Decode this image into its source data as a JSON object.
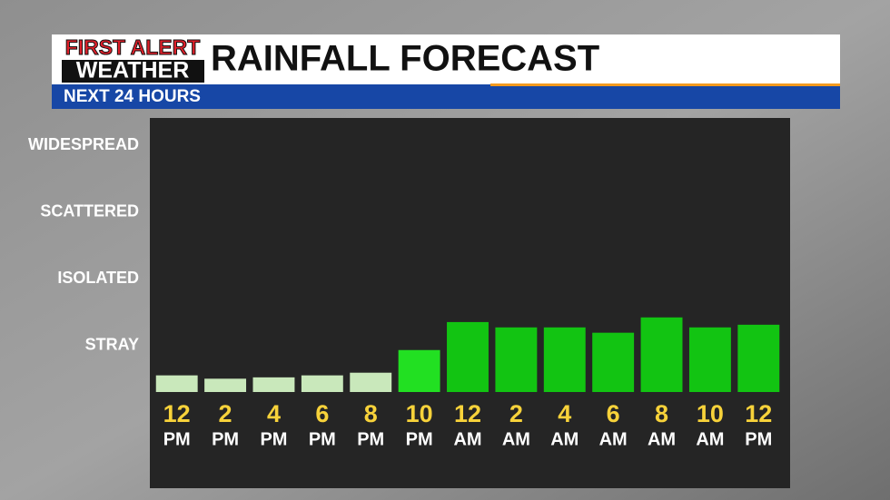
{
  "header": {
    "logo": [
      "FIRST ALERT",
      "WEATHER"
    ],
    "title": "RAINFALL FORECAST",
    "subtitle": "NEXT 24 HOURS"
  },
  "chart_data": {
    "type": "bar",
    "categories": [
      [
        "12",
        "PM"
      ],
      [
        "2",
        "PM"
      ],
      [
        "4",
        "PM"
      ],
      [
        "6",
        "PM"
      ],
      [
        "8",
        "PM"
      ],
      [
        "10",
        "PM"
      ],
      [
        "12",
        "AM"
      ],
      [
        "2",
        "AM"
      ],
      [
        "4",
        "AM"
      ],
      [
        "6",
        "AM"
      ],
      [
        "8",
        "AM"
      ],
      [
        "10",
        "AM"
      ],
      [
        "12",
        "PM"
      ]
    ],
    "values": [
      0.55,
      0.5,
      0.52,
      0.55,
      0.59,
      0.93,
      1.35,
      1.27,
      1.27,
      1.19,
      1.42,
      1.27,
      1.31
    ],
    "colors": [
      "#c9e8bb",
      "#c9e8bb",
      "#c9e8bb",
      "#c9e8bb",
      "#c9e8bb",
      "#22e022",
      "#12c412",
      "#12c412",
      "#12c412",
      "#12c412",
      "#12c412",
      "#12c412",
      "#12c412"
    ],
    "ylim": [
      0.3,
      4.4
    ],
    "yticks": [
      {
        "value": 1,
        "label": "STRAY"
      },
      {
        "value": 2,
        "label": "ISOLATED"
      },
      {
        "value": 3,
        "label": "SCATTERED"
      },
      {
        "value": 4,
        "label": "WIDESPREAD"
      }
    ],
    "grid": false
  }
}
